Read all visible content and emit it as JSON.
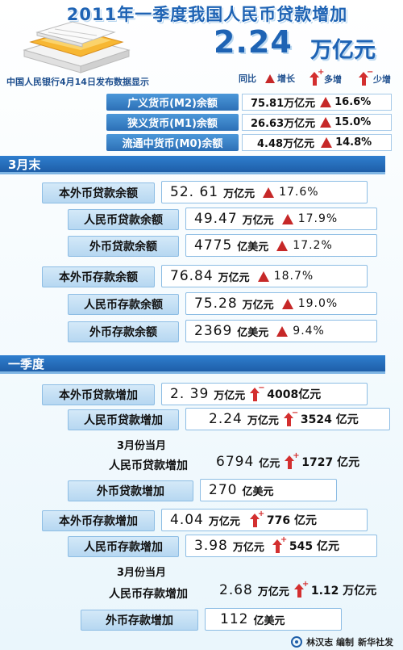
{
  "header": {
    "title": "2011年一季度我国人民币贷款增加",
    "big_number": "2.24",
    "big_unit": "万亿元",
    "subtitle": "中国人民银行4月14日发布数据显示"
  },
  "legend": {
    "yoy": "同比",
    "growth": "增长",
    "more": "多增",
    "less": "少增"
  },
  "money_supply": [
    {
      "label": "广义货币(M2)余额",
      "value": "75.81万亿元",
      "pct": "16.6%"
    },
    {
      "label": "狭义货币(M1)余额",
      "value": "26.63万亿元",
      "pct": "15.0%"
    },
    {
      "label": "流通中货币(M0)余额",
      "value": "4.48万亿元",
      "pct": "14.8%"
    }
  ],
  "section_march_end": {
    "title": "3月末",
    "rows": [
      {
        "label": "本外币贷款余额",
        "num": "52. 61",
        "unit": "万亿元",
        "pct": "17.6%"
      },
      {
        "label": "人民币贷款余额",
        "num": "49.47",
        "unit": "万亿元",
        "pct": "17.9%"
      },
      {
        "label": "外币贷款余额",
        "num": "4775",
        "unit": "亿美元",
        "pct": "17.2%"
      },
      {
        "label": "本外币存款余额",
        "num": "76.84",
        "unit": "万亿元",
        "pct": "18.7%"
      },
      {
        "label": "人民币存款余额",
        "num": "75.28",
        "unit": "万亿元",
        "pct": "19.0%"
      },
      {
        "label": "外币存款余额",
        "num": "2369",
        "unit": "亿美元",
        "pct": "9.4%"
      }
    ]
  },
  "section_q1": {
    "title": "一季度",
    "rows": [
      {
        "label": "本外币贷款增加",
        "num": "2. 39",
        "unit": "万亿元",
        "change": "4008亿元"
      },
      {
        "label": "人民币贷款增加",
        "num": "2.24",
        "unit": "万亿元",
        "change": "3524 亿元"
      },
      {
        "label": "外币贷款增加",
        "num": "270",
        "unit": "亿美元"
      },
      {
        "label": "本外币存款增加",
        "num": "4.04",
        "unit": "万亿元",
        "change": "776 亿元"
      },
      {
        "label": "人民币存款增加",
        "num": "3.98",
        "unit": "万亿元",
        "change": "545 亿元"
      },
      {
        "label": "外币存款增加",
        "num": "112",
        "unit": "亿美元"
      }
    ],
    "march_loan": {
      "note": "3月份当月",
      "label": "人民币贷款增加",
      "num": "6794",
      "unit": "亿元",
      "change": "1727 亿元"
    },
    "march_deposit": {
      "note": "3月份当月",
      "label": "人民币存款增加",
      "num": "2.68",
      "unit": "万亿元",
      "change": "1.12 万亿元"
    }
  },
  "footer": {
    "credit": "林汉志 编制",
    "agency": "新华社发"
  },
  "colors": {
    "title_blue": "#1e63b4",
    "bar_blue": "#2f7fcf",
    "increase_red": "#c62828"
  }
}
